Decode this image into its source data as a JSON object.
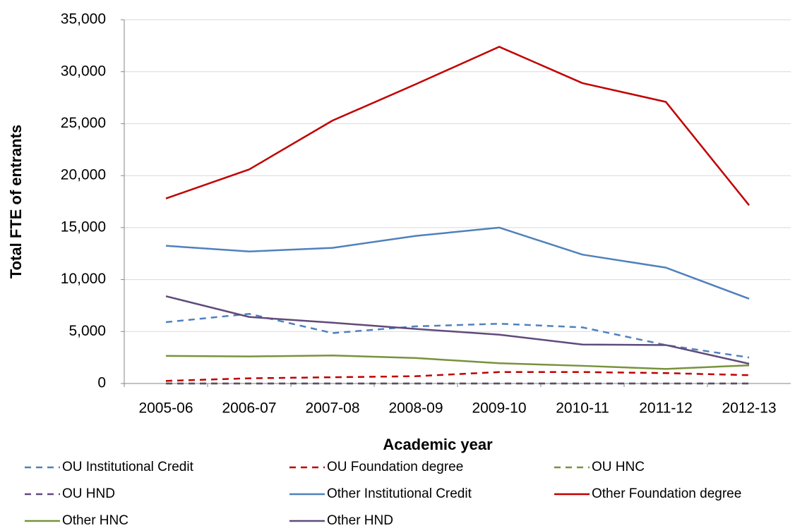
{
  "chart_data": {
    "type": "line",
    "x_label": "Academic year",
    "y_label": "Total FTE of entrants",
    "categories": [
      "2005-06",
      "2006-07",
      "2007-08",
      "2008-09",
      "2009-10",
      "2010-11",
      "2011-12",
      "2012-13"
    ],
    "ylim": [
      0,
      35000
    ],
    "yticks": [
      0,
      {
        "value": 5000,
        "label": "5,000"
      },
      {
        "value": 10000,
        "label": "10,000"
      },
      {
        "value": 15000,
        "label": "15,000"
      },
      {
        "value": 20000,
        "label": "20,000"
      },
      {
        "value": 25000,
        "label": "25,000"
      },
      {
        "value": 30000,
        "label": "30,000"
      },
      {
        "value": 35000,
        "label": "35,000"
      }
    ],
    "grid": true,
    "series": [
      {
        "name": "OU Institutional Credit",
        "color": "#4f81bd",
        "dashed": true,
        "values": [
          5900,
          6700,
          4850,
          5500,
          5750,
          5400,
          3700,
          2500
        ]
      },
      {
        "name": "OU Foundation  degree",
        "color": "#c00000",
        "dashed": true,
        "values": [
          250,
          500,
          600,
          700,
          1100,
          1100,
          1000,
          800
        ]
      },
      {
        "name": "OU HNC",
        "color": "#77933c",
        "dashed": true,
        "values": [
          0,
          0,
          0,
          0,
          0,
          0,
          0,
          0
        ]
      },
      {
        "name": "OU HND",
        "color": "#604a7b",
        "dashed": true,
        "values": [
          0,
          0,
          0,
          0,
          0,
          0,
          0,
          0
        ]
      },
      {
        "name": "Other Institutional Credit",
        "color": "#4f81bd",
        "dashed": false,
        "values": [
          13250,
          12700,
          13050,
          14200,
          15000,
          12400,
          11150,
          8150
        ]
      },
      {
        "name": "Other Foundation degree",
        "color": "#c00000",
        "dashed": false,
        "values": [
          17800,
          20600,
          25300,
          28800,
          32400,
          28900,
          27100,
          17150
        ]
      },
      {
        "name": "Other HNC",
        "color": "#77933c",
        "dashed": false,
        "values": [
          2650,
          2600,
          2700,
          2450,
          1950,
          1700,
          1400,
          1750
        ]
      },
      {
        "name": "Other HND",
        "color": "#604a7b",
        "dashed": false,
        "values": [
          8400,
          6400,
          5850,
          5250,
          4700,
          3750,
          3700,
          1900
        ]
      }
    ]
  }
}
